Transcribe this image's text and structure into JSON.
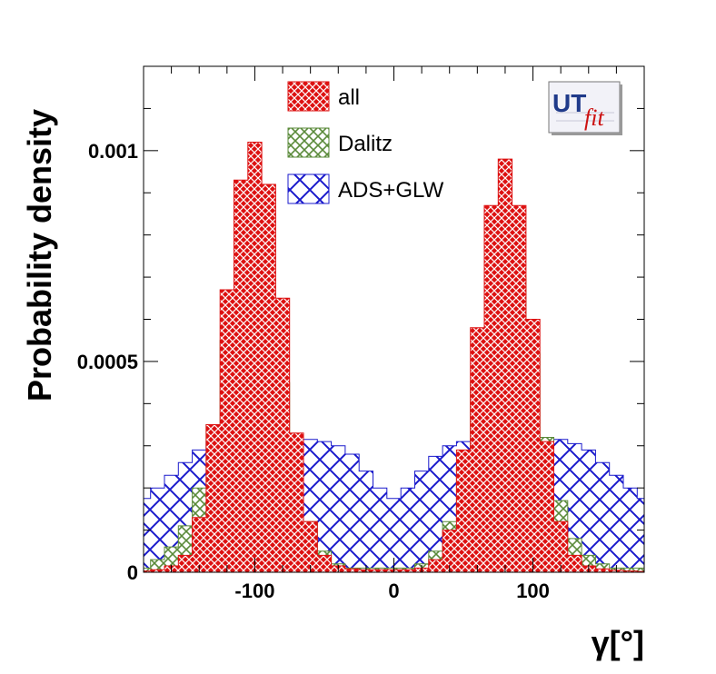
{
  "chart_data": {
    "type": "area",
    "xlabel": "γ[°]",
    "ylabel": "Probability density",
    "xlim": [
      -180,
      180
    ],
    "ylim": [
      0,
      0.0012
    ],
    "x_ticks": [
      {
        "value": -100,
        "label": "-100"
      },
      {
        "value": 0,
        "label": "0"
      },
      {
        "value": 100,
        "label": "100"
      }
    ],
    "y_ticks": [
      {
        "value": 0,
        "label": "0"
      },
      {
        "value": 0.0005,
        "label": "0.0005"
      },
      {
        "value": 0.001,
        "label": "0.001"
      }
    ],
    "legend_position": "top",
    "x": [
      -180,
      -170,
      -160,
      -150,
      -140,
      -130,
      -120,
      -110,
      -100,
      -90,
      -80,
      -70,
      -60,
      -50,
      -40,
      -30,
      -20,
      -10,
      0,
      10,
      20,
      30,
      40,
      50,
      60,
      70,
      80,
      90,
      100,
      110,
      120,
      130,
      140,
      150,
      160,
      170,
      180
    ],
    "series": [
      {
        "name": "ADS+GLW",
        "color": "#1a1acc",
        "hatch": "diagonal-cross-wide",
        "values": [
          0.000175,
          0.0002,
          0.00023,
          0.00026,
          0.00029,
          0.00031,
          0.000315,
          0.000312,
          0.00031,
          0.00031,
          0.00031,
          0.00031,
          0.000315,
          0.00031,
          0.0003,
          0.00028,
          0.00024,
          0.0002,
          0.000175,
          0.0002,
          0.00024,
          0.000275,
          0.0003,
          0.00031,
          0.000312,
          0.000315,
          0.000315,
          0.00031,
          0.00031,
          0.000312,
          0.000315,
          0.000305,
          0.00029,
          0.00026,
          0.00023,
          0.0002,
          0.000175
        ]
      },
      {
        "name": "Dalitz",
        "color": "#5a8a3a",
        "hatch": "diagonal-cross",
        "values": [
          1e-05,
          3e-05,
          6e-05,
          0.00011,
          0.0002,
          0.00035,
          0.00055,
          0.00073,
          0.00076,
          0.00065,
          0.00045,
          0.00025,
          0.00012,
          5e-05,
          2e-05,
          1e-05,
          1e-05,
          1e-05,
          1e-05,
          1e-05,
          2e-05,
          5e-05,
          0.00012,
          0.00025,
          0.00045,
          0.00068,
          0.00076,
          0.0007,
          0.00052,
          0.00032,
          0.00017,
          8e-05,
          4e-05,
          2e-05,
          1e-05,
          1e-05,
          1e-05
        ]
      },
      {
        "name": "all",
        "color": "#dd1111",
        "hatch": "diagonal-cross-fine",
        "values": [
          3e-06,
          6e-06,
          1.5e-05,
          4e-05,
          0.00013,
          0.00035,
          0.00067,
          0.00093,
          0.00102,
          0.00092,
          0.00065,
          0.00033,
          0.00012,
          4e-05,
          1.5e-05,
          8e-06,
          6e-06,
          6e-06,
          6e-06,
          6e-06,
          1e-05,
          3e-05,
          0.0001,
          0.00029,
          0.00058,
          0.00087,
          0.00098,
          0.00087,
          0.0006,
          0.00031,
          0.00012,
          4e-05,
          1.5e-05,
          8e-06,
          5e-06,
          3e-06,
          2e-06
        ]
      }
    ],
    "logo": {
      "text_1": "UT",
      "text_2": "fit"
    }
  }
}
